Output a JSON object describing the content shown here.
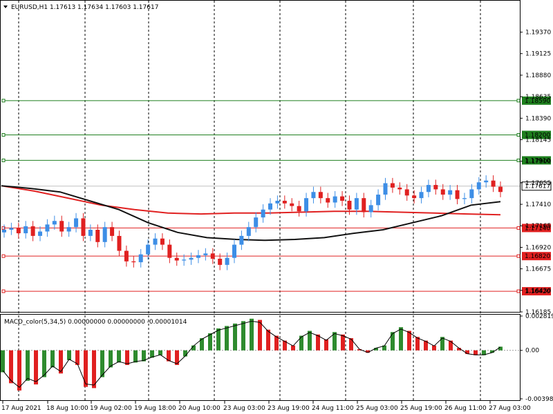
{
  "header": {
    "symbol_info": "EURUSD,H1  1.17613 1.17634 1.17603 1.17617"
  },
  "colors": {
    "bull": "#3d8ee6",
    "bear": "#e02020",
    "ma_fast": "#111111",
    "ma_slow": "#e02020",
    "support": "#e02020",
    "resistance": "#1e7f1e",
    "macd_pos": "#2e8b2e",
    "macd_neg": "#e02020",
    "signal": "#000000"
  },
  "chart_data": [
    {
      "type": "line",
      "name": "main",
      "symbol": "EURUSD",
      "timeframe": "H1",
      "ohlc_last": {
        "open": 1.17613,
        "high": 1.17634,
        "low": 1.17603,
        "close": 1.17617
      },
      "price_ticks": [
        "1.19370",
        "1.19125",
        "1.18880",
        "1.18635",
        "1.18390",
        "1.18145",
        "1.17900",
        "1.17655",
        "1.17410",
        "1.17165",
        "1.16920",
        "1.16675",
        "1.16430",
        "1.16185"
      ],
      "current_price": "1.17617",
      "ylim": [
        1.16185,
        1.1972
      ],
      "x_labels": [
        "17 Aug 2021",
        "18 Aug 10:00",
        "19 Aug 02:00",
        "19 Aug 18:00",
        "20 Aug 10:00",
        "23 Aug 03:00",
        "23 Aug 19:00",
        "24 Aug 11:00",
        "25 Aug 03:00",
        "25 Aug 19:00",
        "26 Aug 11:00",
        "27 Aug 03:00"
      ],
      "levels": [
        {
          "price": 1.1859,
          "label": "1.18590",
          "kind": "resistance"
        },
        {
          "price": 1.182,
          "label": "1.18200",
          "kind": "resistance"
        },
        {
          "price": 1.1791,
          "label": "1.17910",
          "kind": "resistance"
        },
        {
          "price": 1.1714,
          "label": "1.17140",
          "kind": "support"
        },
        {
          "price": 1.1682,
          "label": "1.16820",
          "kind": "support"
        },
        {
          "price": 1.1642,
          "label": "1.16420",
          "kind": "support"
        }
      ],
      "close_series": [
        1.1712,
        1.1714,
        1.1708,
        1.1716,
        1.1705,
        1.171,
        1.1718,
        1.1722,
        1.171,
        1.1715,
        1.1725,
        1.1705,
        1.1712,
        1.1698,
        1.1715,
        1.1705,
        1.1688,
        1.1676,
        1.1675,
        1.1684,
        1.1695,
        1.1702,
        1.1695,
        1.168,
        1.1677,
        1.1678,
        1.168,
        1.1683,
        1.1685,
        1.1679,
        1.1672,
        1.168,
        1.1695,
        1.1705,
        1.1715,
        1.1726,
        1.1735,
        1.1742,
        1.1745,
        1.1742,
        1.1739,
        1.1733,
        1.1748,
        1.1755,
        1.1748,
        1.1743,
        1.175,
        1.1745,
        1.1735,
        1.1748,
        1.1732,
        1.174,
        1.1752,
        1.1765,
        1.176,
        1.1758,
        1.1751,
        1.1748,
        1.1755,
        1.1763,
        1.1758,
        1.1752,
        1.1757,
        1.1747,
        1.1748,
        1.1758,
        1.1766,
        1.1768,
        1.1761,
        1.1755
      ],
      "ma_fast_series": [
        1.1762,
        1.1759,
        1.1755,
        1.1745,
        1.1735,
        1.172,
        1.1709,
        1.1703,
        1.1701,
        1.17,
        1.1701,
        1.1703,
        1.1708,
        1.1712,
        1.172,
        1.1728,
        1.174,
        1.1744
      ],
      "ma_slow_series": [
        1.1762,
        1.1756,
        1.1748,
        1.174,
        1.1735,
        1.1731,
        1.173,
        1.1731,
        1.1731,
        1.1732,
        1.1733,
        1.1733,
        1.1732,
        1.1731,
        1.173,
        1.1729
      ]
    },
    {
      "type": "bar",
      "name": "MACD_color(5,34,5)",
      "indicator_label": "MACD_color(5,34,5) 0.00000000 0.00000000 -0.00001014",
      "y_ticks": [
        "0.0028192",
        "0.00",
        "-0.0039809"
      ],
      "ylim": [
        -0.0039809,
        0.0028192
      ],
      "histogram": [
        -0.0018,
        -0.0027,
        -0.0033,
        -0.0025,
        -0.0028,
        -0.0022,
        -0.0014,
        -0.0019,
        -0.0008,
        -0.0012,
        -0.003,
        -0.0031,
        -0.0022,
        -0.0014,
        -0.001,
        -0.0012,
        -0.001,
        -0.0009,
        -0.0006,
        -0.0004,
        -0.0009,
        -0.0012,
        -0.0005,
        0.0004,
        0.001,
        0.0014,
        0.0018,
        0.002,
        0.0022,
        0.0024,
        0.0026,
        0.0025,
        0.0017,
        0.0012,
        0.0008,
        0.0004,
        0.0012,
        0.0016,
        0.0013,
        0.0009,
        0.0015,
        0.0013,
        0.001,
        0.0001,
        -0.0002,
        0.0002,
        0.0004,
        0.0015,
        0.0019,
        0.0016,
        0.0011,
        0.0008,
        0.0004,
        0.0011,
        0.0008,
        0.0002,
        -0.0003,
        -0.0004,
        -0.0004,
        -0.0002,
        0.0003
      ]
    }
  ]
}
